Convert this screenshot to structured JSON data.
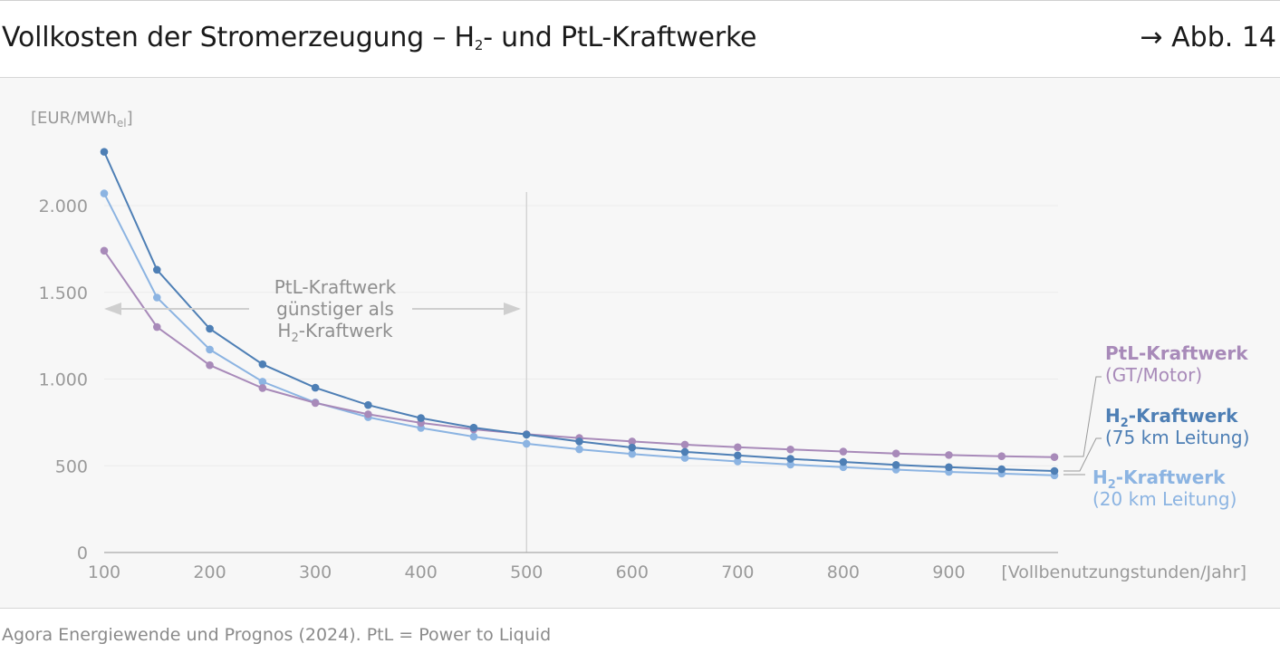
{
  "header": {
    "title_main": "Vollkosten der Stromerzeugung – H",
    "title_sub": "2",
    "title_rest": "- und PtL-Kraftwerke",
    "figure_ref": "→ Abb. 14"
  },
  "source": "Agora Energiewende und Prognos (2024). PtL = Power to Liquid",
  "colors": {
    "h2_75": "#4e7fb5",
    "h2_20": "#8cb4e2",
    "ptl": "#a88ab9",
    "annotation": "#8f8f8f",
    "axis": "#9a9a9a"
  },
  "chart_data": {
    "type": "line",
    "ylabel_main": "[EUR/MWh",
    "ylabel_sub": "el",
    "ylabel_close": "]",
    "xlabel": "[Vollbenutzungstunden/Jahr]",
    "xlim": [
      100,
      1000
    ],
    "ylim": [
      0,
      2300
    ],
    "x_ticks": [
      100,
      200,
      300,
      400,
      500,
      600,
      700,
      800,
      900
    ],
    "x_tick_labels": [
      "100",
      "200",
      "300",
      "400",
      "500",
      "600",
      "700",
      "800",
      "900"
    ],
    "y_ticks": [
      0,
      500,
      1000,
      1500,
      2000
    ],
    "y_tick_labels": [
      "0",
      "500",
      "1.000",
      "1.500",
      "2.000"
    ],
    "grid": true,
    "x": [
      100,
      150,
      200,
      250,
      300,
      350,
      400,
      450,
      500,
      550,
      600,
      650,
      700,
      750,
      800,
      850,
      900,
      950,
      1000
    ],
    "series": [
      {
        "key": "h2_75",
        "name_main": "H",
        "name_sub": "2",
        "name_rest": "-Kraftwerk",
        "name_line2": "(75 km Leitung)",
        "values": [
          2310,
          1630,
          1290,
          1085,
          950,
          850,
          775,
          720,
          680,
          640,
          605,
          580,
          560,
          540,
          522,
          505,
          492,
          480,
          470
        ]
      },
      {
        "key": "h2_20",
        "name_main": "H",
        "name_sub": "2",
        "name_rest": "-Kraftwerk",
        "name_line2": "(20 km Leitung)",
        "values": [
          2070,
          1470,
          1170,
          985,
          865,
          780,
          718,
          668,
          627,
          595,
          568,
          545,
          525,
          507,
          492,
          478,
          465,
          455,
          445
        ]
      },
      {
        "key": "ptl",
        "name_main": "PtL-Kraftwerk",
        "name_sub": "",
        "name_rest": "",
        "name_line2": "(GT/Motor)",
        "values": [
          1740,
          1300,
          1080,
          948,
          862,
          797,
          747,
          710,
          682,
          660,
          640,
          622,
          607,
          594,
          582,
          571,
          562,
          555,
          550
        ]
      }
    ],
    "divider_x": 500,
    "annotation": {
      "line1": "PtL-Kraftwerk",
      "line2": "günstiger als",
      "line3_main": "H",
      "line3_sub": "2",
      "line3_rest": "-Kraftwerk"
    }
  }
}
